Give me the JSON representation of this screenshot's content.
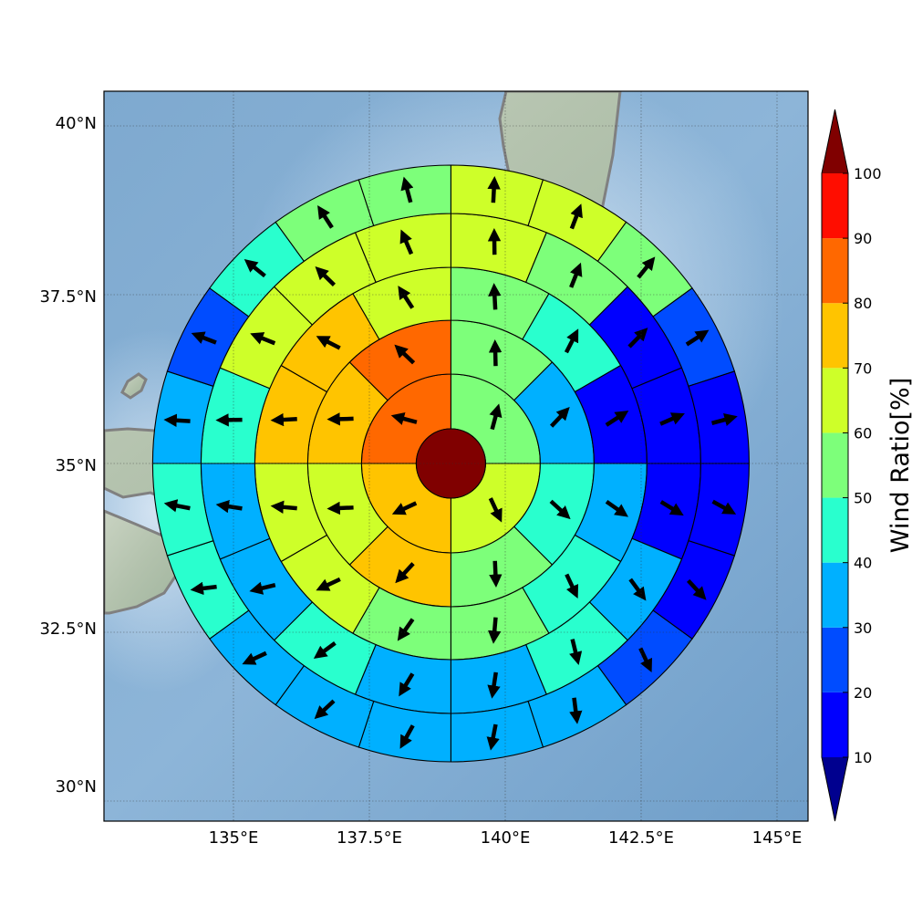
{
  "map": {
    "lat_ticks": [
      "40°N",
      "37.5°N",
      "35°N",
      "32.5°N",
      "30°N"
    ],
    "lon_ticks": [
      "135°E",
      "137.5°E",
      "140°E",
      "142.5°E",
      "145°E"
    ],
    "background": "shaded-relief-ocean"
  },
  "colorbar": {
    "label": "Wind Ratio[%]",
    "tick_labels": [
      "10",
      "20",
      "30",
      "40",
      "50",
      "60",
      "70",
      "80",
      "90",
      "100"
    ],
    "bins": [
      {
        "from": 10,
        "to": 20,
        "color": "#0000ff"
      },
      {
        "from": 20,
        "to": 30,
        "color": "#004cff"
      },
      {
        "from": 30,
        "to": 40,
        "color": "#00b0ff"
      },
      {
        "from": 40,
        "to": 50,
        "color": "#29ffce"
      },
      {
        "from": 50,
        "to": 60,
        "color": "#7dff7a"
      },
      {
        "from": 60,
        "to": 70,
        "color": "#ceff29"
      },
      {
        "from": 70,
        "to": 80,
        "color": "#ffc400"
      },
      {
        "from": 80,
        "to": 90,
        "color": "#ff6800"
      },
      {
        "from": 90,
        "to": 100,
        "color": "#ff0d00"
      }
    ],
    "under_color": "#00008f",
    "over_color": "#800000"
  },
  "wind_rose": {
    "center_lon": 139.0,
    "center_lat": 35.0,
    "center_value": 100,
    "rings": [
      {
        "sectors": 4,
        "start_deg": 0,
        "values": [
          55,
          62,
          75,
          85
        ]
      },
      {
        "sectors": 8,
        "start_deg": 0,
        "values": [
          55,
          35,
          45,
          55,
          75,
          60,
          70,
          85
        ]
      },
      {
        "sectors": 12,
        "start_deg": 0,
        "values": [
          55,
          45,
          15,
          35,
          45,
          55,
          55,
          62,
          62,
          75,
          75,
          65
        ]
      },
      {
        "sectors": 16,
        "start_deg": 0,
        "values": [
          65,
          55,
          15,
          15,
          15,
          35,
          45,
          35,
          35,
          45,
          35,
          35,
          45,
          62,
          62,
          62
        ]
      },
      {
        "sectors": 20,
        "start_deg": 0,
        "values": [
          62,
          62,
          55,
          25,
          15,
          15,
          15,
          25,
          35,
          35,
          35,
          35,
          35,
          45,
          45,
          35,
          25,
          45,
          55,
          55
        ]
      }
    ]
  }
}
